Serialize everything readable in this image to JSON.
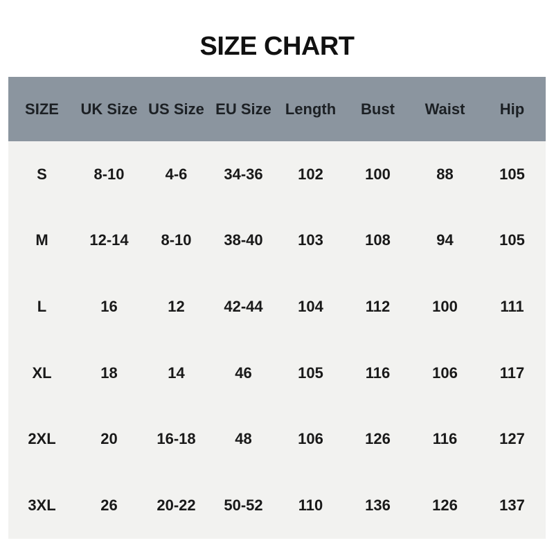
{
  "page": {
    "title": "SIZE CHART"
  },
  "colors": {
    "page_bg": "#ffffff",
    "header_bg": "#8b959f",
    "body_bg": "#f2f2f0",
    "text": "#191919"
  },
  "chart_data": {
    "type": "table",
    "title": "SIZE CHART",
    "columns": [
      "SIZE",
      "UK Size",
      "US Size",
      "EU Size",
      "Length",
      "Bust",
      "Waist",
      "Hip"
    ],
    "rows": [
      [
        "S",
        "8-10",
        "4-6",
        "34-36",
        "102",
        "100",
        "88",
        "105"
      ],
      [
        "M",
        "12-14",
        "8-10",
        "38-40",
        "103",
        "108",
        "94",
        "105"
      ],
      [
        "L",
        "16",
        "12",
        "42-44",
        "104",
        "112",
        "100",
        "111"
      ],
      [
        "XL",
        "18",
        "14",
        "46",
        "105",
        "116",
        "106",
        "117"
      ],
      [
        "2XL",
        "20",
        "16-18",
        "48",
        "106",
        "126",
        "116",
        "127"
      ],
      [
        "3XL",
        "26",
        "20-22",
        "50-52",
        "110",
        "136",
        "126",
        "137"
      ]
    ]
  }
}
